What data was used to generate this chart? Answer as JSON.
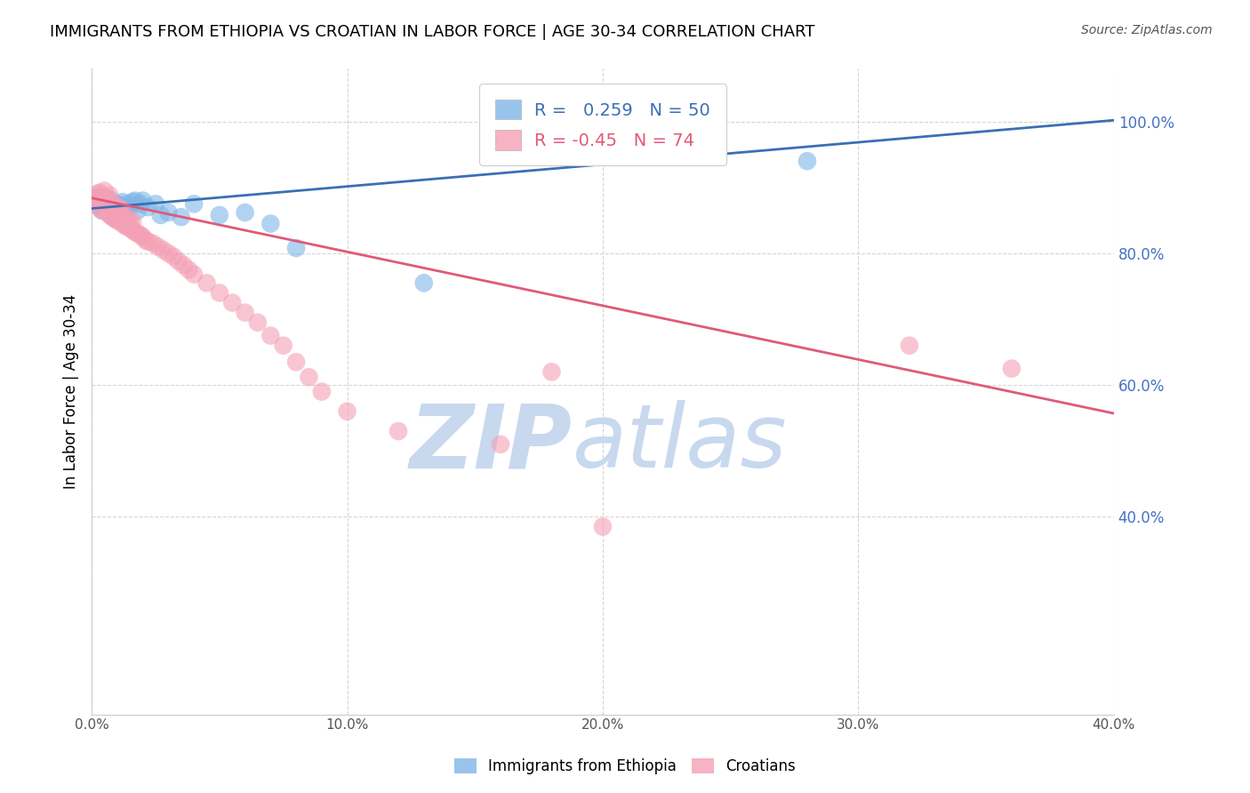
{
  "title": "IMMIGRANTS FROM ETHIOPIA VS CROATIAN IN LABOR FORCE | AGE 30-34 CORRELATION CHART",
  "source": "Source: ZipAtlas.com",
  "ylabel": "In Labor Force | Age 30-34",
  "xlim": [
    0.0,
    0.4
  ],
  "ylim": [
    0.1,
    1.08
  ],
  "yticks": [
    0.4,
    0.6,
    0.8,
    1.0
  ],
  "xticks": [
    0.0,
    0.1,
    0.2,
    0.3,
    0.4
  ],
  "blue_R": 0.259,
  "blue_N": 50,
  "pink_R": -0.45,
  "pink_N": 74,
  "blue_line_x": [
    0.0,
    0.4
  ],
  "blue_line_y": [
    0.868,
    1.002
  ],
  "pink_line_x": [
    0.0,
    0.4
  ],
  "pink_line_y": [
    0.884,
    0.557
  ],
  "blue_color": "#7EB6E8",
  "pink_color": "#F4A0B5",
  "blue_line_color": "#3B6FB5",
  "pink_line_color": "#E05A78",
  "watermark_zip": "ZIP",
  "watermark_atlas": "atlas",
  "watermark_color": "#C8D8EE",
  "legend_label_blue": "Immigrants from Ethiopia",
  "legend_label_pink": "Croatians",
  "blue_dots_x": [
    0.001,
    0.002,
    0.002,
    0.003,
    0.003,
    0.003,
    0.004,
    0.004,
    0.004,
    0.005,
    0.005,
    0.005,
    0.005,
    0.006,
    0.006,
    0.006,
    0.007,
    0.007,
    0.007,
    0.007,
    0.008,
    0.008,
    0.009,
    0.009,
    0.01,
    0.01,
    0.011,
    0.011,
    0.012,
    0.012,
    0.013,
    0.014,
    0.015,
    0.016,
    0.017,
    0.018,
    0.019,
    0.02,
    0.022,
    0.025,
    0.027,
    0.03,
    0.035,
    0.04,
    0.05,
    0.06,
    0.07,
    0.08,
    0.13,
    0.28
  ],
  "blue_dots_y": [
    0.875,
    0.88,
    0.885,
    0.87,
    0.875,
    0.885,
    0.865,
    0.875,
    0.88,
    0.87,
    0.875,
    0.88,
    0.885,
    0.865,
    0.87,
    0.878,
    0.86,
    0.868,
    0.875,
    0.882,
    0.858,
    0.872,
    0.855,
    0.87,
    0.865,
    0.875,
    0.862,
    0.872,
    0.87,
    0.878,
    0.868,
    0.875,
    0.87,
    0.878,
    0.88,
    0.865,
    0.875,
    0.88,
    0.87,
    0.875,
    0.858,
    0.862,
    0.855,
    0.875,
    0.858,
    0.862,
    0.845,
    0.808,
    0.755,
    0.94
  ],
  "pink_dots_x": [
    0.001,
    0.002,
    0.002,
    0.003,
    0.003,
    0.003,
    0.004,
    0.004,
    0.004,
    0.005,
    0.005,
    0.005,
    0.005,
    0.006,
    0.006,
    0.006,
    0.007,
    0.007,
    0.007,
    0.007,
    0.008,
    0.008,
    0.008,
    0.009,
    0.009,
    0.009,
    0.01,
    0.01,
    0.01,
    0.011,
    0.011,
    0.011,
    0.012,
    0.012,
    0.013,
    0.013,
    0.014,
    0.014,
    0.015,
    0.015,
    0.016,
    0.016,
    0.017,
    0.018,
    0.019,
    0.02,
    0.021,
    0.022,
    0.024,
    0.026,
    0.028,
    0.03,
    0.032,
    0.034,
    0.036,
    0.038,
    0.04,
    0.045,
    0.05,
    0.055,
    0.06,
    0.065,
    0.07,
    0.075,
    0.08,
    0.085,
    0.09,
    0.1,
    0.12,
    0.16,
    0.18,
    0.2,
    0.32,
    0.36
  ],
  "pink_dots_y": [
    0.878,
    0.882,
    0.89,
    0.87,
    0.878,
    0.892,
    0.865,
    0.875,
    0.885,
    0.87,
    0.878,
    0.885,
    0.895,
    0.862,
    0.87,
    0.88,
    0.858,
    0.868,
    0.878,
    0.888,
    0.855,
    0.865,
    0.875,
    0.852,
    0.862,
    0.872,
    0.85,
    0.86,
    0.87,
    0.848,
    0.858,
    0.868,
    0.845,
    0.858,
    0.842,
    0.855,
    0.84,
    0.852,
    0.838,
    0.85,
    0.835,
    0.848,
    0.832,
    0.83,
    0.828,
    0.825,
    0.82,
    0.818,
    0.815,
    0.81,
    0.805,
    0.8,
    0.795,
    0.788,
    0.782,
    0.775,
    0.768,
    0.755,
    0.74,
    0.725,
    0.71,
    0.695,
    0.675,
    0.66,
    0.635,
    0.612,
    0.59,
    0.56,
    0.53,
    0.51,
    0.62,
    0.385,
    0.66,
    0.625
  ]
}
